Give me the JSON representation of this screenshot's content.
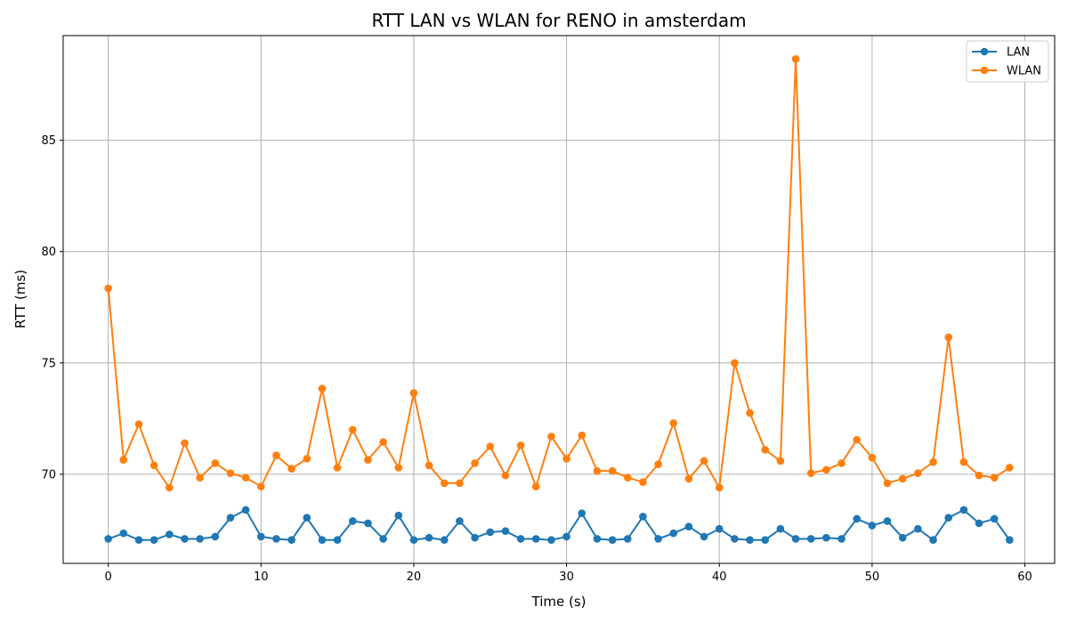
{
  "chart_data": {
    "type": "line",
    "title": "RTT LAN vs WLAN for RENO in amsterdam",
    "xlabel": "Time (s)",
    "ylabel": "RTT (ms)",
    "xlim": [
      -2.95,
      61.95
    ],
    "ylim": [
      66.0,
      89.7
    ],
    "xticks": [
      0,
      10,
      20,
      30,
      40,
      50,
      60
    ],
    "yticks": [
      70,
      75,
      80,
      85
    ],
    "grid": true,
    "legend_position": "top-right",
    "x": [
      0,
      1,
      2,
      3,
      4,
      5,
      6,
      7,
      8,
      9,
      10,
      11,
      12,
      13,
      14,
      15,
      16,
      17,
      18,
      19,
      20,
      21,
      22,
      23,
      24,
      25,
      26,
      27,
      28,
      29,
      30,
      31,
      32,
      33,
      34,
      35,
      36,
      37,
      38,
      39,
      40,
      41,
      42,
      43,
      44,
      45,
      46,
      47,
      48,
      49,
      50,
      51,
      52,
      53,
      54,
      55,
      56,
      57,
      58,
      59
    ],
    "series": [
      {
        "name": "LAN",
        "color": "#1f77b4",
        "values": [
          67.1,
          67.35,
          67.05,
          67.05,
          67.3,
          67.1,
          67.1,
          67.2,
          68.05,
          68.4,
          67.2,
          67.1,
          67.05,
          68.05,
          67.05,
          67.05,
          67.9,
          67.8,
          67.1,
          68.15,
          67.05,
          67.15,
          67.05,
          67.9,
          67.15,
          67.4,
          67.45,
          67.1,
          67.1,
          67.05,
          67.2,
          68.25,
          67.1,
          67.05,
          67.1,
          68.1,
          67.1,
          67.35,
          67.65,
          67.2,
          67.55,
          67.1,
          67.05,
          67.05,
          67.55,
          67.1,
          67.1,
          67.15,
          67.1,
          68.0,
          67.7,
          67.9,
          67.15,
          67.55,
          67.05,
          68.05,
          68.4,
          67.8,
          68.0,
          67.05
        ]
      },
      {
        "name": "WLAN",
        "color": "#ff7f0e",
        "values": [
          78.35,
          70.65,
          72.25,
          70.4,
          69.4,
          71.4,
          69.85,
          70.5,
          70.05,
          69.85,
          69.45,
          70.85,
          70.25,
          70.7,
          73.85,
          70.3,
          72.0,
          70.65,
          71.45,
          70.3,
          73.65,
          70.4,
          69.6,
          69.6,
          70.5,
          71.25,
          69.95,
          71.3,
          69.45,
          71.7,
          70.7,
          71.75,
          70.15,
          70.15,
          69.85,
          69.65,
          70.45,
          72.3,
          69.8,
          70.6,
          69.4,
          75.0,
          72.75,
          71.1,
          70.6,
          88.65,
          70.05,
          70.2,
          70.5,
          71.55,
          70.75,
          69.6,
          69.8,
          70.05,
          70.55,
          76.15,
          70.55,
          69.95,
          69.85,
          70.3
        ]
      }
    ]
  }
}
